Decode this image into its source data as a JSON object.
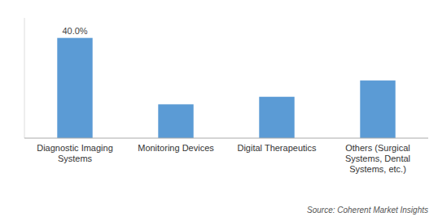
{
  "chart_data": {
    "type": "bar",
    "categories": [
      "Diagnostic Imaging\nSystems",
      "Monitoring Devices",
      "Digital Therapeutics",
      "Others (Surgical\nSystems, Dental\nSystems, etc.)"
    ],
    "values": [
      40.0,
      13.5,
      16.5,
      23.0
    ],
    "value_labels": [
      "40.0%",
      null,
      null,
      null
    ],
    "data_labels": true,
    "color": "#5B9BD5",
    "ylim": [
      0,
      48
    ],
    "tick_labels": "x",
    "grid": false,
    "annotations": [
      "Source: Coherent Market Insights"
    ]
  }
}
